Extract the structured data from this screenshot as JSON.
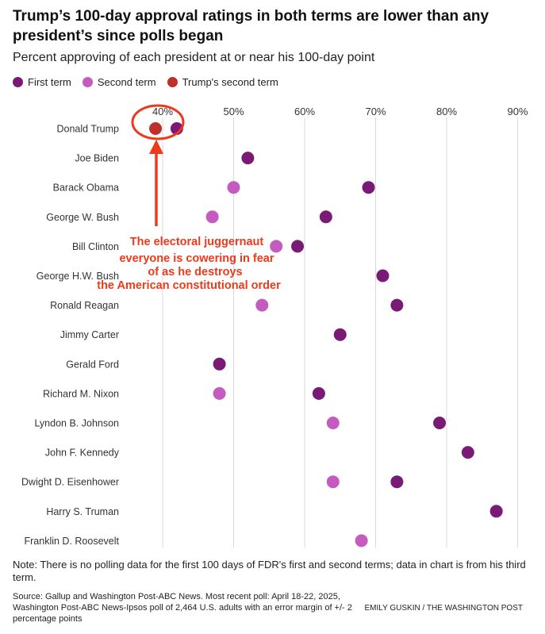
{
  "header": {
    "title": "Trump’s 100-day approval ratings in both terms are lower than any president’s since polls began",
    "subtitle": "Percent approving of each president at or near his 100-day point"
  },
  "legend": {
    "items": [
      {
        "label": "First term",
        "color": "#7a1a77"
      },
      {
        "label": "Second term",
        "color": "#c55bbf"
      },
      {
        "label": "Trump's second term",
        "color": "#c0302a"
      }
    ]
  },
  "colors": {
    "first_term": "#7a1a77",
    "second_term": "#c55bbf",
    "trump_second": "#c0302a",
    "annotation": "#ee3a1a",
    "grid": "#d9d9d9"
  },
  "chart_data": {
    "type": "scatter",
    "title": "Trump’s 100-day approval ratings in both terms are lower than any president’s since polls began",
    "subtitle": "Percent approving of each president at or near his 100-day point",
    "xlim": [
      36,
      92
    ],
    "x_ticks": [
      40,
      50,
      60,
      70,
      80,
      90
    ],
    "x_tick_labels": [
      "40%",
      "50%",
      "60%",
      "70%",
      "80%",
      "90%"
    ],
    "grid": true,
    "legend_position": "top-left",
    "categories": [
      "Donald Trump",
      "Joe Biden",
      "Barack Obama",
      "George W. Bush",
      "Bill Clinton",
      "George H.W. Bush",
      "Ronald Reagan",
      "Jimmy Carter",
      "Gerald Ford",
      "Richard M. Nixon",
      "Lyndon B. Johnson",
      "John F. Kennedy",
      "Dwight D. Eisenhower",
      "Harry S. Truman",
      "Franklin D. Roosevelt"
    ],
    "series": [
      {
        "name": "First term",
        "values": [
          42,
          52,
          69,
          63,
          59,
          71,
          73,
          65,
          48,
          62,
          79,
          83,
          73,
          87,
          null
        ]
      },
      {
        "name": "Second term",
        "values": [
          null,
          null,
          50,
          47,
          56,
          null,
          54,
          null,
          null,
          48,
          64,
          null,
          64,
          null,
          68
        ]
      },
      {
        "name": "Trump's second term",
        "values": [
          39,
          null,
          null,
          null,
          null,
          null,
          null,
          null,
          null,
          null,
          null,
          null,
          null,
          null,
          null
        ]
      }
    ],
    "annotation": {
      "lines": [
        "The electoral juggernaut",
        "everyone is cowering in fear",
        "of as he destroys",
        "the American constitutional order"
      ]
    }
  },
  "footer": {
    "note": "Note: There is no polling data for the first 100 days of FDR's first and second terms; data in chart is from his third term.",
    "source": "Source: Gallup and Washington Post-ABC News. Most recent poll: April 18-22, 2025, Washington Post-ABC News-Ipsos poll of 2,464 U.S. adults with an error margin of +/- 2 percentage points",
    "credit": "EMILY GUSKIN / THE WASHINGTON POST"
  }
}
